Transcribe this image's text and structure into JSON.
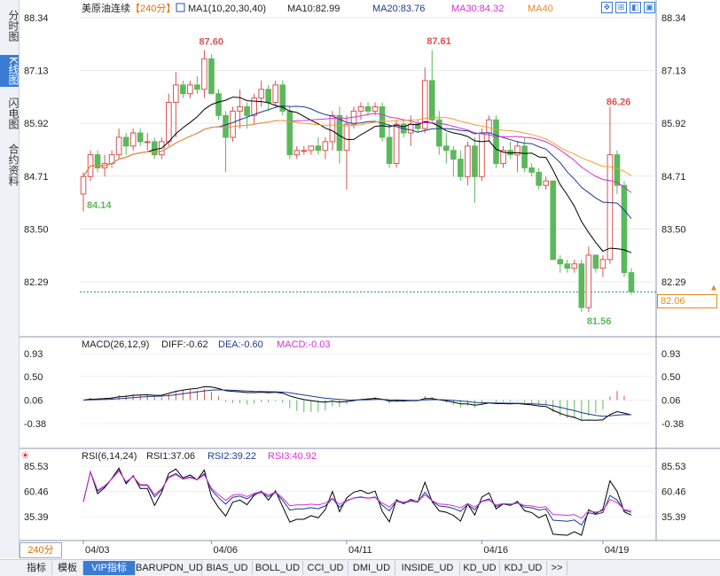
{
  "side_tabs": [
    {
      "label": "分时图",
      "active": false
    },
    {
      "label": "K线图",
      "active": true
    },
    {
      "label": "闪电图",
      "active": false
    },
    {
      "label": "合约资料",
      "active": false
    }
  ],
  "header": {
    "symbol": "美原油连续",
    "period": "【240分】",
    "ma_title": "MA1(10,20,30,40)",
    "ma10": "MA10:82.99",
    "ma20": "MA20:83.76",
    "ma30": "MA30:84.32",
    "ma40": "MA40"
  },
  "toolbar": {
    "icons": [
      "expand-icon",
      "fit-icon",
      "split-icon",
      "fullscreen-icon"
    ]
  },
  "price_axis": [
    "88.34",
    "87.13",
    "85.92",
    "84.71",
    "83.50",
    "82.29"
  ],
  "current_price": "82.06",
  "annotations": {
    "high1": "87.60",
    "high2": "87.61",
    "high3": "86.26",
    "low1": "84.14",
    "low2": "81.56"
  },
  "macd": {
    "title": "MACD(26,12,9)",
    "diff": "DIFF:-0.62",
    "dea": "DEA:-0.60",
    "macd": "MACD:-0.03",
    "axis": [
      "0.93",
      "0.50",
      "0.06",
      "-0.38"
    ]
  },
  "rsi": {
    "title": "RSI(6,14,24)",
    "rsi1": "RSI1:37.06",
    "rsi2": "RSI2:39.22",
    "rsi3": "RSI3:40.92",
    "axis": [
      "85.53",
      "60.46",
      "35.39"
    ]
  },
  "dates": [
    "04/03",
    "04/06",
    "04/11",
    "04/16",
    "04/19"
  ],
  "period_select": "240分",
  "bottom_tabs": [
    "指标",
    "模板",
    "VIP指标",
    "BARUPDN_UD",
    "BIAS_UD",
    "BOLL_UD",
    "CCI_UD",
    "DMI_UD",
    "INSIDE_UD",
    "KD_UD",
    "KDJ_UD",
    ">>"
  ],
  "colors": {
    "up": "#d9534f",
    "down": "#5cb85c",
    "ma10": "#000000",
    "ma20": "#1d3b8f",
    "ma30": "#d630d6",
    "ma40": "#f0a030",
    "accent": "#3a7bd5"
  },
  "chart_data": {
    "type": "candlestick",
    "ylim": [
      80.9,
      88.9
    ],
    "candles": [
      {
        "o": 84.3,
        "h": 84.8,
        "l": 83.9,
        "c": 84.7
      },
      {
        "o": 84.7,
        "h": 85.3,
        "l": 84.6,
        "c": 85.2
      },
      {
        "o": 85.2,
        "h": 85.3,
        "l": 84.8,
        "c": 84.9
      },
      {
        "o": 84.9,
        "h": 85.2,
        "l": 84.7,
        "c": 85.0
      },
      {
        "o": 85.0,
        "h": 85.3,
        "l": 84.9,
        "c": 85.2
      },
      {
        "o": 85.2,
        "h": 85.8,
        "l": 85.1,
        "c": 85.6
      },
      {
        "o": 85.6,
        "h": 85.7,
        "l": 85.2,
        "c": 85.4
      },
      {
        "o": 85.4,
        "h": 85.8,
        "l": 85.3,
        "c": 85.7
      },
      {
        "o": 85.7,
        "h": 85.8,
        "l": 85.4,
        "c": 85.5
      },
      {
        "o": 85.5,
        "h": 85.7,
        "l": 85.3,
        "c": 85.5
      },
      {
        "o": 85.5,
        "h": 85.6,
        "l": 85.1,
        "c": 85.2
      },
      {
        "o": 85.2,
        "h": 85.6,
        "l": 85.1,
        "c": 85.5
      },
      {
        "o": 85.5,
        "h": 86.6,
        "l": 85.4,
        "c": 86.4
      },
      {
        "o": 86.4,
        "h": 87.1,
        "l": 85.6,
        "c": 86.8
      },
      {
        "o": 86.8,
        "h": 86.9,
        "l": 86.5,
        "c": 86.6
      },
      {
        "o": 86.6,
        "h": 86.9,
        "l": 86.5,
        "c": 86.8
      },
      {
        "o": 86.8,
        "h": 87.0,
        "l": 86.6,
        "c": 86.7
      },
      {
        "o": 86.7,
        "h": 87.6,
        "l": 86.5,
        "c": 87.4
      },
      {
        "o": 87.4,
        "h": 87.5,
        "l": 86.6,
        "c": 86.6
      },
      {
        "o": 86.6,
        "h": 86.7,
        "l": 86.0,
        "c": 86.1
      },
      {
        "o": 86.1,
        "h": 86.2,
        "l": 84.8,
        "c": 85.6
      },
      {
        "o": 85.6,
        "h": 86.3,
        "l": 85.5,
        "c": 86.2
      },
      {
        "o": 86.2,
        "h": 86.7,
        "l": 85.8,
        "c": 86.3
      },
      {
        "o": 86.3,
        "h": 86.4,
        "l": 85.8,
        "c": 86.1
      },
      {
        "o": 86.1,
        "h": 86.6,
        "l": 85.9,
        "c": 86.5
      },
      {
        "o": 86.5,
        "h": 86.9,
        "l": 86.3,
        "c": 86.7
      },
      {
        "o": 86.7,
        "h": 86.8,
        "l": 86.2,
        "c": 86.4
      },
      {
        "o": 86.4,
        "h": 86.9,
        "l": 86.3,
        "c": 86.8
      },
      {
        "o": 86.8,
        "h": 86.9,
        "l": 86.1,
        "c": 86.2
      },
      {
        "o": 86.2,
        "h": 86.3,
        "l": 85.1,
        "c": 85.2
      },
      {
        "o": 85.2,
        "h": 85.4,
        "l": 85.1,
        "c": 85.3
      },
      {
        "o": 85.3,
        "h": 85.4,
        "l": 85.2,
        "c": 85.3
      },
      {
        "o": 85.3,
        "h": 85.4,
        "l": 85.2,
        "c": 85.4
      },
      {
        "o": 85.4,
        "h": 85.6,
        "l": 85.2,
        "c": 85.3
      },
      {
        "o": 85.3,
        "h": 85.6,
        "l": 85.1,
        "c": 85.5
      },
      {
        "o": 85.5,
        "h": 86.2,
        "l": 85.3,
        "c": 86.1
      },
      {
        "o": 86.1,
        "h": 86.3,
        "l": 85.0,
        "c": 85.3
      },
      {
        "o": 85.3,
        "h": 86.1,
        "l": 84.4,
        "c": 85.9
      },
      {
        "o": 85.9,
        "h": 86.3,
        "l": 85.8,
        "c": 86.2
      },
      {
        "o": 86.2,
        "h": 86.4,
        "l": 86.0,
        "c": 86.3
      },
      {
        "o": 86.3,
        "h": 86.4,
        "l": 86.1,
        "c": 86.2
      },
      {
        "o": 86.2,
        "h": 86.4,
        "l": 86.1,
        "c": 86.3
      },
      {
        "o": 86.3,
        "h": 86.4,
        "l": 85.5,
        "c": 85.6
      },
      {
        "o": 85.6,
        "h": 85.9,
        "l": 84.9,
        "c": 85.0
      },
      {
        "o": 85.0,
        "h": 86.0,
        "l": 84.9,
        "c": 85.9
      },
      {
        "o": 85.9,
        "h": 86.0,
        "l": 85.6,
        "c": 85.7
      },
      {
        "o": 85.7,
        "h": 86.1,
        "l": 85.4,
        "c": 85.9
      },
      {
        "o": 85.9,
        "h": 86.0,
        "l": 85.7,
        "c": 85.8
      },
      {
        "o": 85.8,
        "h": 87.2,
        "l": 85.7,
        "c": 86.9
      },
      {
        "o": 86.9,
        "h": 87.6,
        "l": 85.9,
        "c": 86.0
      },
      {
        "o": 86.0,
        "h": 86.2,
        "l": 85.2,
        "c": 85.4
      },
      {
        "o": 85.4,
        "h": 85.7,
        "l": 85.0,
        "c": 85.3
      },
      {
        "o": 85.3,
        "h": 85.4,
        "l": 84.7,
        "c": 85.1
      },
      {
        "o": 85.1,
        "h": 85.3,
        "l": 84.6,
        "c": 84.7
      },
      {
        "o": 84.7,
        "h": 85.5,
        "l": 84.5,
        "c": 85.4
      },
      {
        "o": 85.4,
        "h": 85.6,
        "l": 84.1,
        "c": 84.7
      },
      {
        "o": 84.7,
        "h": 85.8,
        "l": 84.6,
        "c": 85.7
      },
      {
        "o": 85.7,
        "h": 86.1,
        "l": 85.5,
        "c": 86.0
      },
      {
        "o": 86.0,
        "h": 86.1,
        "l": 84.9,
        "c": 85.0
      },
      {
        "o": 85.0,
        "h": 85.4,
        "l": 84.9,
        "c": 85.3
      },
      {
        "o": 85.3,
        "h": 85.5,
        "l": 85.1,
        "c": 85.2
      },
      {
        "o": 85.2,
        "h": 85.5,
        "l": 84.8,
        "c": 85.4
      },
      {
        "o": 85.4,
        "h": 85.6,
        "l": 84.8,
        "c": 84.9
      },
      {
        "o": 84.9,
        "h": 85.0,
        "l": 84.7,
        "c": 84.8
      },
      {
        "o": 84.8,
        "h": 84.9,
        "l": 84.4,
        "c": 84.5
      },
      {
        "o": 84.5,
        "h": 84.7,
        "l": 84.4,
        "c": 84.6
      },
      {
        "o": 84.6,
        "h": 84.6,
        "l": 82.8,
        "c": 82.8
      },
      {
        "o": 82.8,
        "h": 82.9,
        "l": 82.5,
        "c": 82.7
      },
      {
        "o": 82.7,
        "h": 82.8,
        "l": 82.5,
        "c": 82.6
      },
      {
        "o": 82.6,
        "h": 82.8,
        "l": 82.5,
        "c": 82.7
      },
      {
        "o": 82.7,
        "h": 82.8,
        "l": 81.6,
        "c": 81.7
      },
      {
        "o": 81.7,
        "h": 83.1,
        "l": 81.6,
        "c": 82.9
      },
      {
        "o": 82.9,
        "h": 82.9,
        "l": 82.5,
        "c": 82.6
      },
      {
        "o": 82.6,
        "h": 82.9,
        "l": 82.4,
        "c": 82.8
      },
      {
        "o": 82.8,
        "h": 86.3,
        "l": 82.7,
        "c": 85.2
      },
      {
        "o": 85.2,
        "h": 85.3,
        "l": 84.3,
        "c": 84.5
      },
      {
        "o": 84.5,
        "h": 84.6,
        "l": 82.4,
        "c": 82.5
      },
      {
        "o": 82.5,
        "h": 82.6,
        "l": 82.0,
        "c": 82.06
      }
    ]
  }
}
